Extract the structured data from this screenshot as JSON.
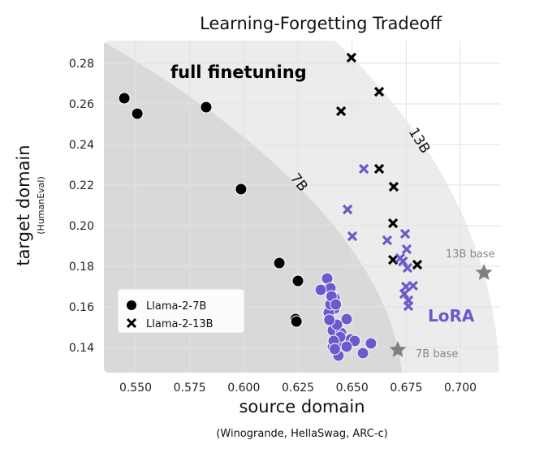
{
  "chart_data": {
    "type": "scatter",
    "title": "Learning-Forgetting Tradeoff",
    "xlabel": "source domain",
    "xlabel_sub": "(Winogrande, HellaSwag, ARC-c)",
    "ylabel": "target domain",
    "ylabel_sub": "(HumanEval)",
    "xlim": [
      0.536,
      0.718
    ],
    "ylim": [
      0.128,
      0.291
    ],
    "xticks": [
      "0.550",
      "0.575",
      "0.600",
      "0.625",
      "0.650",
      "0.675",
      "0.700"
    ],
    "yticks": [
      "0.28",
      "0.26",
      "0.24",
      "0.22",
      "0.20",
      "0.18",
      "0.16",
      "0.14"
    ],
    "grid": true,
    "legend": {
      "placement": "bottom-left",
      "entries": [
        "Llama-2-7B",
        "Llama-2-13B"
      ]
    },
    "annotations": {
      "full": "full finetuning",
      "lora": "LoRA",
      "r7": "7B",
      "r13": "13B",
      "base13": "13B base",
      "base7": "7B base"
    },
    "colors": {
      "full": "#000000",
      "lora": "#6a5acd",
      "base": "#808080",
      "region7": "#d9d9d9",
      "region13": "#ececec",
      "grid": "#e2e2e2"
    },
    "series": [
      {
        "name": "Llama-2-7B full finetuning",
        "marker": "circle",
        "color": "#000000",
        "x": [
          0.5448,
          0.5508,
          0.5826,
          0.5987,
          0.6164,
          0.625,
          0.6239,
          0.6243
        ],
        "y": [
          0.2628,
          0.2552,
          0.2584,
          0.218,
          0.1816,
          0.1728,
          0.154,
          0.1528
        ]
      },
      {
        "name": "Llama-2-13B full finetuning",
        "marker": "x",
        "color": "#000000",
        "x": [
          0.6497,
          0.6625,
          0.6449,
          0.6625,
          0.6692,
          0.6689,
          0.6689,
          0.6801
        ],
        "y": [
          0.2828,
          0.266,
          0.2564,
          0.228,
          0.2192,
          0.2012,
          0.1832,
          0.1808
        ]
      },
      {
        "name": "Llama-2-7B LoRA",
        "marker": "circle",
        "color": "#6a5acd",
        "x": [
          0.6385,
          0.64,
          0.6355,
          0.6419,
          0.6419,
          0.6392,
          0.6475,
          0.6411,
          0.6449,
          0.6494,
          0.6512,
          0.6441,
          0.6411,
          0.6475,
          0.6587,
          0.655,
          0.6437,
          0.64,
          0.6405,
          0.6425,
          0.643,
          0.6395,
          0.6445,
          0.6415,
          0.642
        ],
        "y": [
          0.174,
          0.1692,
          0.1684,
          0.1644,
          0.1592,
          0.1572,
          0.154,
          0.1484,
          0.1472,
          0.144,
          0.1432,
          0.1412,
          0.1404,
          0.1404,
          0.142,
          0.1372,
          0.136,
          0.1612,
          0.1652,
          0.1612,
          0.1512,
          0.1536,
          0.1452,
          0.1432,
          0.1392
        ]
      },
      {
        "name": "Llama-2-13B LoRA",
        "marker": "x",
        "color": "#6a5acd",
        "x": [
          0.6554,
          0.6479,
          0.6501,
          0.6662,
          0.6745,
          0.6752,
          0.6722,
          0.6756,
          0.6749,
          0.6782,
          0.6741,
          0.676,
          0.676,
          0.6735
        ],
        "y": [
          0.228,
          0.208,
          0.1948,
          0.1928,
          0.196,
          0.1884,
          0.184,
          0.1792,
          0.17,
          0.1704,
          0.1664,
          0.1632,
          0.1604,
          0.1824
        ]
      },
      {
        "name": "base models",
        "marker": "star",
        "color": "#808080",
        "labels": [
          "13B base",
          "7B base"
        ],
        "x": [
          0.7109,
          0.6711
        ],
        "y": [
          0.1768,
          0.1388
        ]
      }
    ]
  }
}
